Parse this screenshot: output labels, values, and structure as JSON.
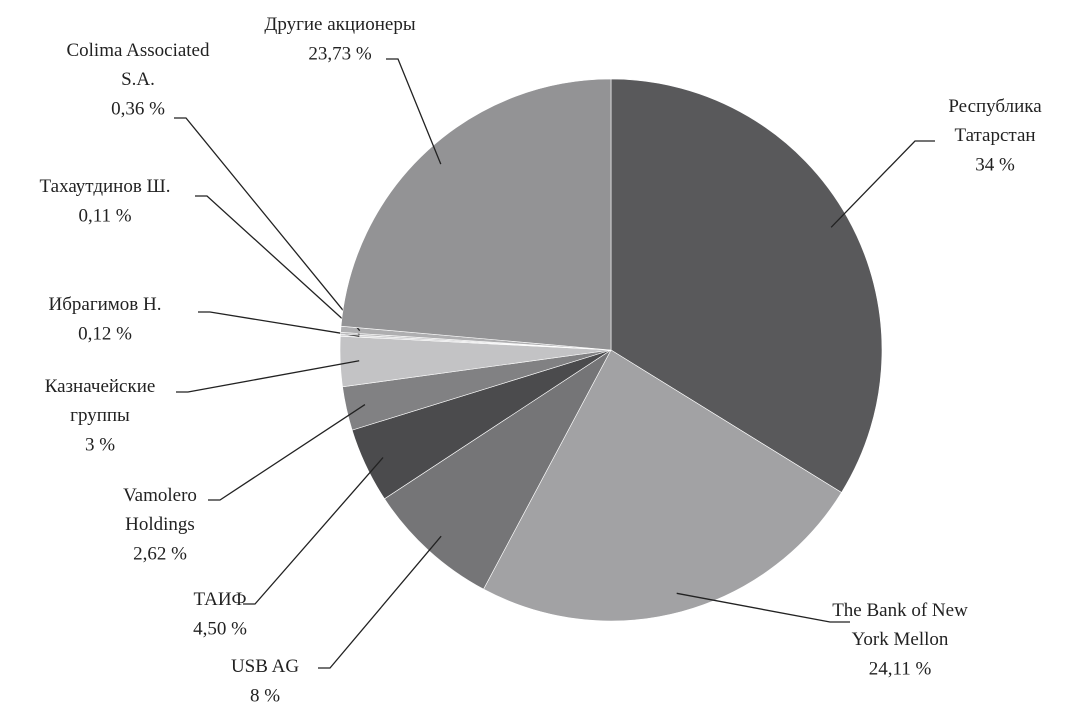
{
  "chart_data": {
    "type": "pie",
    "categories": [
      "Республика\nТатарстан",
      "The Bank of New\nYork Mellon",
      "USB AG",
      "ТАИФ",
      "Vamolero\nHoldings",
      "Казначейские\nгруппы",
      "Ибрагимов Н.",
      "Тахаутдинов Ш.",
      "Colima Associated\nS.A.",
      "Другие акционеры"
    ],
    "values": [
      34,
      24.11,
      8,
      4.5,
      2.62,
      3,
      0.12,
      0.11,
      0.36,
      23.73
    ],
    "value_labels": [
      "34 %",
      "24,11 %",
      "8 %",
      "4,50 %",
      "2,62 %",
      "3 %",
      "0,12 %",
      "0,11 %",
      "0,36 %",
      "23,73 %"
    ],
    "colors": [
      "#59595b",
      "#a2a2a4",
      "#757577",
      "#4b4b4d",
      "#818183",
      "#c3c3c5",
      "#d6d6d8",
      "#bbbbbd",
      "#aeaeb0",
      "#939395"
    ]
  }
}
